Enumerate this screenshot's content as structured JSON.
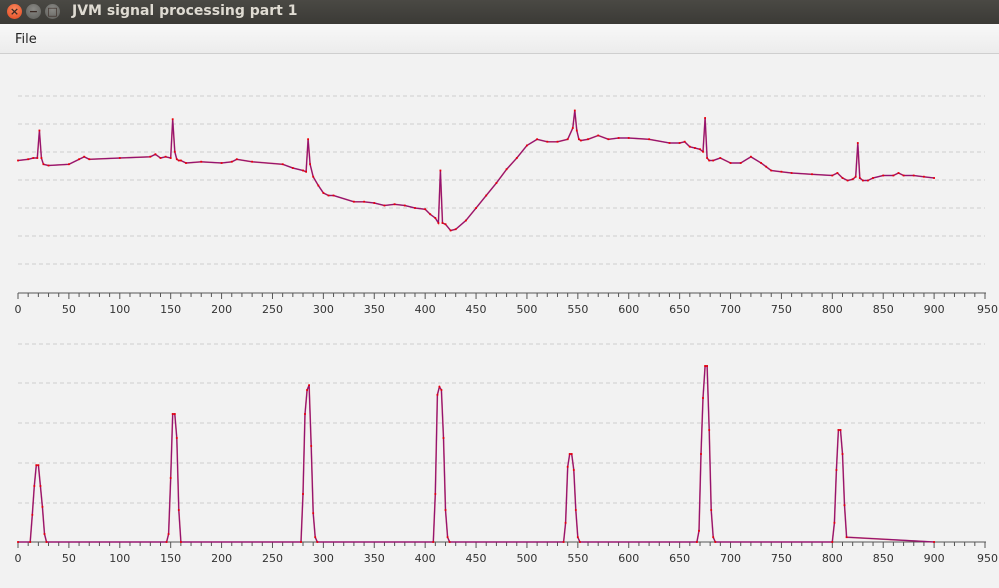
{
  "window": {
    "title": "JVM signal processing part 1",
    "close_icon": "×",
    "minimize_icon": "−",
    "maximize_icon": "□"
  },
  "menu": {
    "file": "File"
  },
  "colors": {
    "signal": "#e8000a",
    "highlight": "#2a2af0",
    "axis": "#555555",
    "grid": "#cfcfcf"
  },
  "chart_data": [
    {
      "type": "line",
      "title": "",
      "xlabel": "",
      "ylabel": "",
      "xlim": [
        0,
        950
      ],
      "x_ticks": [
        "0",
        "50",
        "100",
        "150",
        "200",
        "250",
        "300",
        "350",
        "400",
        "450",
        "500",
        "550",
        "600",
        "650",
        "700",
        "750",
        "800",
        "850",
        "900",
        "950"
      ],
      "grid": "horizontal dashed",
      "series": [
        {
          "color": "red",
          "x": [
            0,
            10,
            15,
            19,
            21,
            23,
            25,
            30,
            50,
            60,
            65,
            70,
            100,
            130,
            135,
            140,
            145,
            150,
            152,
            154,
            156,
            158,
            160,
            165,
            180,
            200,
            210,
            215,
            230,
            260,
            270,
            280,
            283,
            285,
            287,
            290,
            295,
            300,
            305,
            310,
            330,
            340,
            350,
            360,
            370,
            380,
            390,
            400,
            405,
            410,
            413,
            415,
            417,
            420,
            425,
            430,
            440,
            450,
            460,
            470,
            480,
            490,
            500,
            510,
            520,
            530,
            540,
            545,
            547,
            549,
            551,
            553,
            560,
            570,
            580,
            590,
            600,
            620,
            640,
            650,
            655,
            660,
            665,
            670,
            673,
            675,
            677,
            679,
            683,
            690,
            700,
            710,
            720,
            730,
            735,
            740,
            750,
            760,
            780,
            800,
            805,
            810,
            815,
            820,
            823,
            825,
            827,
            830,
            835,
            840,
            850,
            860,
            865,
            870,
            880,
            890,
            900
          ],
          "y": [
            0.38,
            0.39,
            0.4,
            0.4,
            0.62,
            0.4,
            0.35,
            0.34,
            0.35,
            0.39,
            0.41,
            0.39,
            0.4,
            0.41,
            0.43,
            0.4,
            0.41,
            0.4,
            0.71,
            0.45,
            0.39,
            0.38,
            0.38,
            0.36,
            0.37,
            0.36,
            0.37,
            0.39,
            0.37,
            0.35,
            0.32,
            0.3,
            0.29,
            0.55,
            0.35,
            0.25,
            0.18,
            0.12,
            0.1,
            0.1,
            0.05,
            0.05,
            0.04,
            0.02,
            0.03,
            0.02,
            0.0,
            -0.01,
            -0.05,
            -0.08,
            -0.12,
            0.3,
            -0.12,
            -0.13,
            -0.18,
            -0.17,
            -0.1,
            0.0,
            0.1,
            0.2,
            0.31,
            0.4,
            0.5,
            0.55,
            0.53,
            0.53,
            0.55,
            0.64,
            0.78,
            0.62,
            0.55,
            0.54,
            0.55,
            0.58,
            0.55,
            0.56,
            0.56,
            0.55,
            0.52,
            0.52,
            0.53,
            0.49,
            0.48,
            0.47,
            0.45,
            0.72,
            0.4,
            0.38,
            0.38,
            0.4,
            0.36,
            0.36,
            0.41,
            0.36,
            0.33,
            0.3,
            0.29,
            0.28,
            0.27,
            0.26,
            0.28,
            0.24,
            0.22,
            0.23,
            0.25,
            0.52,
            0.24,
            0.22,
            0.22,
            0.24,
            0.26,
            0.26,
            0.28,
            0.26,
            0.26,
            0.25,
            0.24
          ]
        }
      ]
    },
    {
      "type": "line",
      "title": "",
      "xlabel": "",
      "ylabel": "",
      "xlim": [
        0,
        950
      ],
      "x_ticks": [
        "0",
        "50",
        "100",
        "150",
        "200",
        "250",
        "300",
        "350",
        "400",
        "450",
        "500",
        "550",
        "600",
        "650",
        "700",
        "750",
        "800",
        "850",
        "900",
        "950"
      ],
      "grid": "horizontal dashed",
      "series": [
        {
          "color": "red",
          "x": [
            0,
            12,
            14,
            16,
            18,
            20,
            22,
            24,
            26,
            28,
            146,
            148,
            150,
            152,
            154,
            156,
            158,
            160,
            278,
            280,
            282,
            284,
            286,
            288,
            290,
            292,
            294,
            408,
            410,
            412,
            414,
            416,
            418,
            420,
            422,
            424,
            536,
            538,
            540,
            542,
            544,
            546,
            548,
            550,
            552,
            667,
            669,
            671,
            673,
            675,
            677,
            679,
            681,
            683,
            685,
            800,
            802,
            804,
            806,
            808,
            810,
            812,
            814,
            900
          ],
          "y": [
            0,
            0,
            0.17,
            0.35,
            0.48,
            0.48,
            0.35,
            0.22,
            0.05,
            0,
            0,
            0.05,
            0.4,
            0.8,
            0.8,
            0.65,
            0.2,
            0,
            0,
            0.3,
            0.8,
            0.95,
            0.98,
            0.6,
            0.18,
            0.03,
            0,
            0,
            0.3,
            0.92,
            0.97,
            0.95,
            0.65,
            0.2,
            0.03,
            0,
            0,
            0.12,
            0.47,
            0.55,
            0.55,
            0.45,
            0.2,
            0.03,
            0,
            0,
            0.07,
            0.55,
            0.9,
            1.1,
            1.1,
            0.7,
            0.2,
            0.03,
            0,
            0,
            0.12,
            0.45,
            0.7,
            0.7,
            0.55,
            0.23,
            0.03,
            0
          ]
        }
      ]
    }
  ]
}
